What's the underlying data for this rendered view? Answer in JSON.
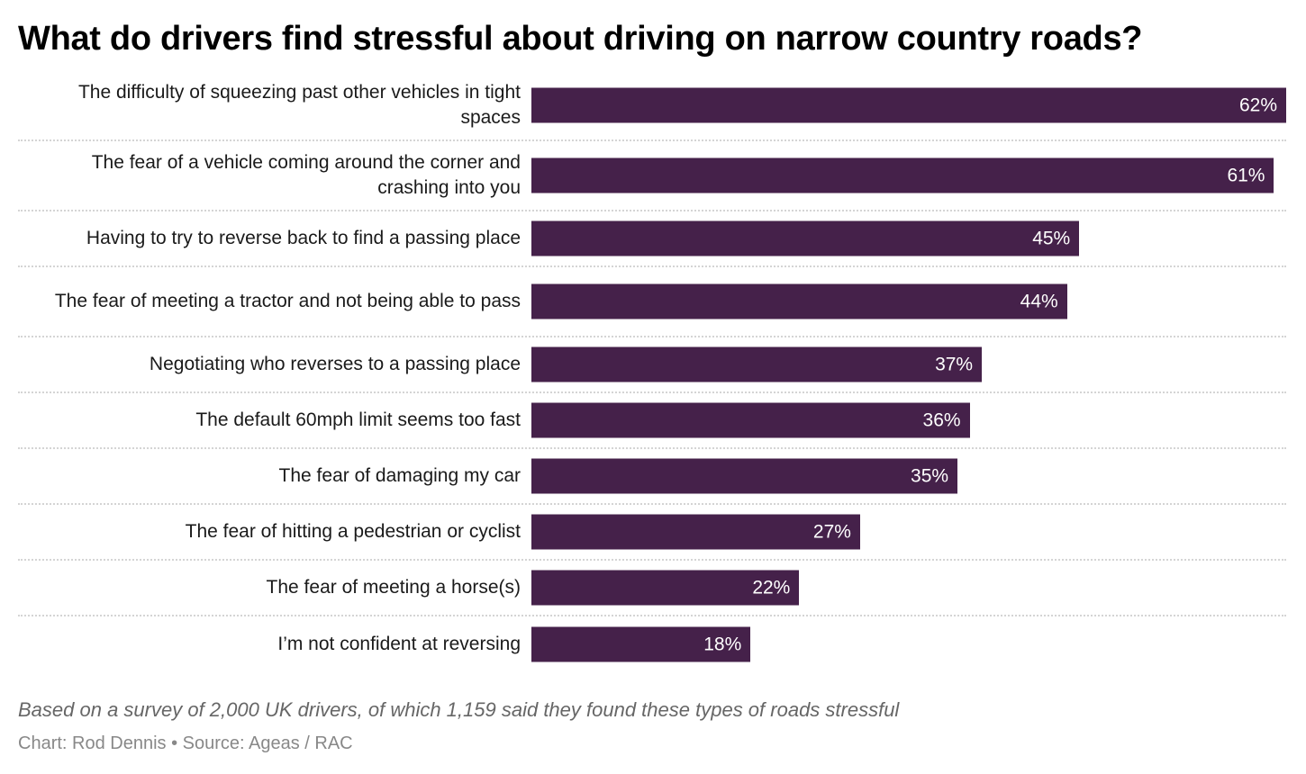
{
  "chart_data": {
    "type": "bar",
    "orientation": "horizontal",
    "title": "What do drivers find stressful about driving on narrow country roads?",
    "categories": [
      "The difficulty of squeezing past other vehicles in tight spaces",
      "The fear of a vehicle coming around the corner and crashing into you",
      "Having to try to reverse back to find a passing place",
      "The fear of meeting a tractor and not being able to pass",
      "Negotiating who reverses to a passing place",
      "The default 60mph limit seems too fast",
      "The fear of damaging my car",
      "The fear of hitting a pedestrian or cyclist",
      "The fear of meeting a horse(s)",
      "I’m not confident at reversing"
    ],
    "values": [
      62,
      61,
      45,
      44,
      37,
      36,
      35,
      27,
      22,
      18
    ],
    "value_labels": [
      "62%",
      "61%",
      "45%",
      "44%",
      "37%",
      "36%",
      "35%",
      "27%",
      "22%",
      "18%"
    ],
    "unit": "%",
    "xlim": [
      0,
      62
    ],
    "grid": false,
    "bar_color": "#45214a",
    "note": "Based on a survey of 2,000 UK drivers, of which 1,159 said they found these types of roads stressful",
    "source": "Chart: Rod Dennis • Source: Ageas / RAC"
  }
}
